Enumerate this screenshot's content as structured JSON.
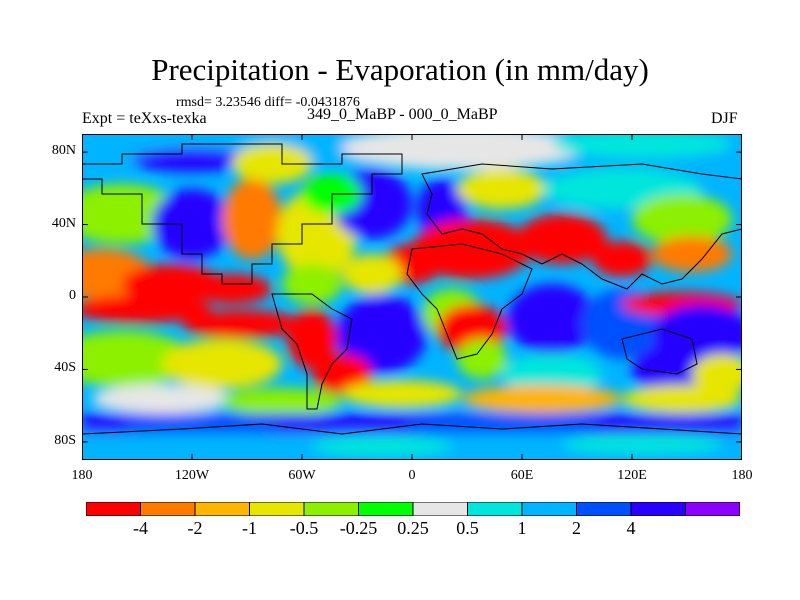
{
  "title": "Precipitation - Evaporation (in mm/day)",
  "stats": "rmsd= 3.23546 diff= -0.0431876",
  "experiment": "Expt = teXxs-texka",
  "period": "349_0_MaBP - 000_0_MaBP",
  "season": "DJF",
  "axes": {
    "y_ticks": [
      {
        "label": "80N",
        "lat": 80
      },
      {
        "label": "40N",
        "lat": 40
      },
      {
        "label": "0",
        "lat": 0
      },
      {
        "label": "40S",
        "lat": -40
      },
      {
        "label": "80S",
        "lat": -80
      }
    ],
    "x_ticks": [
      {
        "label": "180",
        "lon": -180
      },
      {
        "label": "120W",
        "lon": -120
      },
      {
        "label": "60W",
        "lon": -60
      },
      {
        "label": "0",
        "lon": 0
      },
      {
        "label": "60E",
        "lon": 60
      },
      {
        "label": "120E",
        "lon": 120
      },
      {
        "label": "180",
        "lon": 180
      }
    ],
    "lon_range": [
      -180,
      180
    ],
    "lat_range": [
      -90,
      90
    ]
  },
  "colorbar": {
    "colors": [
      "#ff0000",
      "#ff7a00",
      "#ffb400",
      "#e6e600",
      "#8cf000",
      "#00ff00",
      "#e6e6e6",
      "#00e6dc",
      "#00b4ff",
      "#0050ff",
      "#2800ff",
      "#8c00ff"
    ],
    "labels": [
      "-4",
      "-2",
      "-1",
      "-0.5",
      "-0.25",
      "0.25",
      "0.5",
      "1",
      "2",
      "4"
    ]
  }
}
